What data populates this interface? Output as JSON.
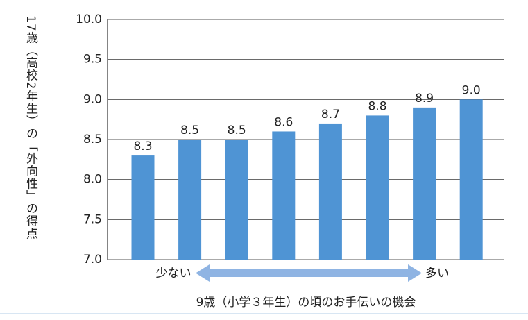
{
  "chart_data": {
    "type": "bar",
    "y_label": "17歳（高校2年生）の「外向性」の得点",
    "x_label": "9歳（小学３年生）の頃のお手伝いの機会",
    "annotations": [
      "少ない",
      "多い"
    ],
    "categories": [
      null,
      null,
      null,
      null,
      null,
      null,
      null,
      null
    ],
    "values": [
      8.3,
      8.5,
      8.5,
      8.6,
      8.7,
      8.8,
      8.9,
      9.0
    ],
    "value_labels": [
      "8.3",
      "8.5",
      "8.5",
      "8.6",
      "8.7",
      "8.8",
      "8.9",
      "9.0"
    ],
    "color": "#4f94d4",
    "ylim": [
      7.0,
      10.0
    ],
    "yticks": [
      {
        "value": 7.0,
        "label": "7.0"
      },
      7.5,
      {
        "value": 8.0,
        "label": "8.0"
      },
      8.5,
      {
        "value": 9.0,
        "label": "9.0"
      },
      9.5,
      {
        "value": 10.0,
        "label": "10.0"
      }
    ],
    "grid": true
  }
}
